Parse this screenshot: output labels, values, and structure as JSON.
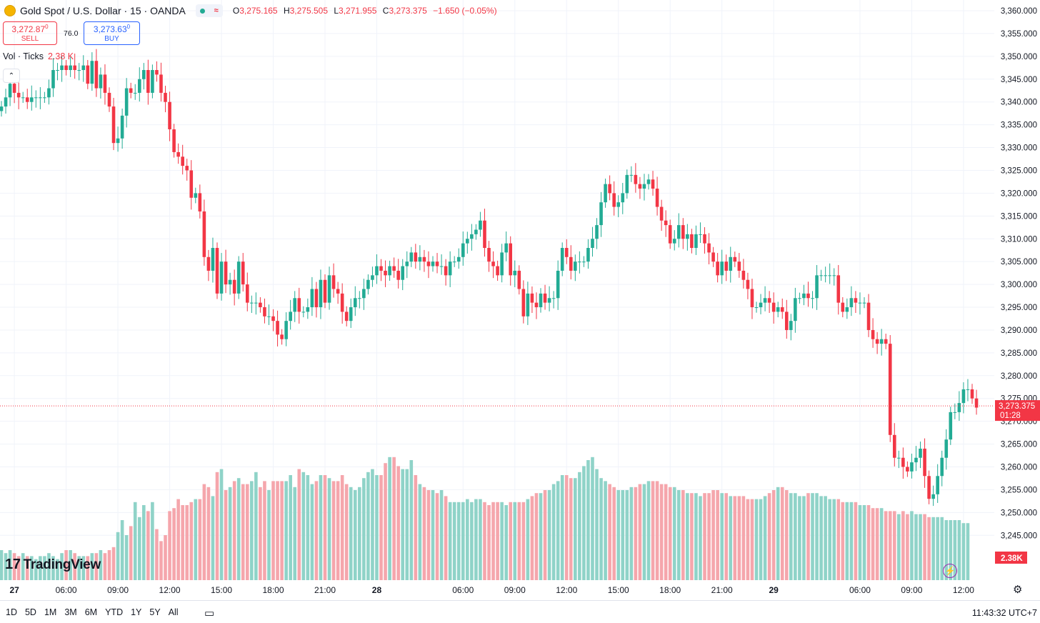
{
  "header": {
    "symbol": "Gold Spot / U.S. Dollar · 15 · OANDA",
    "ohlc": [
      {
        "k": "O",
        "v": "3,275.165"
      },
      {
        "k": "H",
        "v": "3,275.505"
      },
      {
        "k": "L",
        "v": "3,271.955"
      },
      {
        "k": "C",
        "v": "3,273.375"
      },
      {
        "k": "",
        "v": "−1.650 (−0.05%)"
      }
    ]
  },
  "trade": {
    "sell_price": "3,272.87",
    "sell_sup": "0",
    "sell_label": "SELL",
    "buy_price": "3,273.63",
    "buy_sup": "0",
    "buy_label": "BUY",
    "spread": "76.0"
  },
  "volume_legend": {
    "label": "Vol · Ticks",
    "value": "2.38 K"
  },
  "current_price": {
    "label": "3,273.375",
    "countdown": "01:28",
    "value": 3273.375
  },
  "volume_tag": "2.38K",
  "logo": "TradingView",
  "ranges": [
    "1D",
    "5D",
    "1M",
    "3M",
    "6M",
    "YTD",
    "1Y",
    "5Y",
    "All"
  ],
  "clock": "11:43:32 UTC+7",
  "colors": {
    "up": "#22ab94",
    "down": "#f23645",
    "vol_up": "#8fd3c8",
    "vol_down": "#f5a6ac",
    "grid": "#f0f3fa"
  },
  "chart_data": {
    "type": "candlestick",
    "y_axis": {
      "min": 3240,
      "max": 3360,
      "step": 5,
      "labels": [
        "3,360.000",
        "3,355.000",
        "3,350.000",
        "3,345.000",
        "3,340.000",
        "3,335.000",
        "3,330.000",
        "3,325.000",
        "3,320.000",
        "3,315.000",
        "3,310.000",
        "3,305.000",
        "3,300.000",
        "3,295.000",
        "3,290.000",
        "3,285.000",
        "3,280.000",
        "3,275.000",
        "3,270.000",
        "3,265.000",
        "3,260.000",
        "3,255.000",
        "3,250.000",
        "3,245.000"
      ]
    },
    "x_ticks": [
      {
        "label": "27",
        "bold": true,
        "bar": 3
      },
      {
        "label": "06:00",
        "bold": false,
        "bar": 15
      },
      {
        "label": "09:00",
        "bold": false,
        "bar": 27
      },
      {
        "label": "12:00",
        "bold": false,
        "bar": 39
      },
      {
        "label": "15:00",
        "bold": false,
        "bar": 51
      },
      {
        "label": "18:00",
        "bold": false,
        "bar": 63
      },
      {
        "label": "21:00",
        "bold": false,
        "bar": 75
      },
      {
        "label": "28",
        "bold": true,
        "bar": 87
      },
      {
        "label": "06:00",
        "bold": false,
        "bar": 107
      },
      {
        "label": "09:00",
        "bold": false,
        "bar": 119
      },
      {
        "label": "12:00",
        "bold": false,
        "bar": 131
      },
      {
        "label": "15:00",
        "bold": false,
        "bar": 143
      },
      {
        "label": "18:00",
        "bold": false,
        "bar": 155
      },
      {
        "label": "21:00",
        "bold": false,
        "bar": 167
      },
      {
        "label": "29",
        "bold": true,
        "bar": 179
      },
      {
        "label": "06:00",
        "bold": false,
        "bar": 199
      },
      {
        "label": "09:00",
        "bold": false,
        "bar": 211
      },
      {
        "label": "12:00",
        "bold": false,
        "bar": 223
      }
    ],
    "closes": [
      3339,
      3341,
      3344,
      3342,
      3341,
      3341,
      3340,
      3341,
      3341,
      3341,
      3341,
      3343,
      3347,
      3347,
      3348,
      3347,
      3348,
      3347,
      3347,
      3348,
      3344,
      3349,
      3343,
      3346,
      3342,
      3339,
      3331,
      3332,
      3337,
      3343,
      3342,
      3342,
      3345,
      3347,
      3342,
      3347,
      3346,
      3342,
      3340,
      3334,
      3329,
      3328,
      3326,
      3325,
      3319,
      3320,
      3316,
      3306,
      3303,
      3308,
      3298,
      3305,
      3300,
      3301,
      3298,
      3305,
      3300,
      3296,
      3296,
      3296,
      3295,
      3293,
      3293,
      3292,
      3289,
      3288,
      3292,
      3294,
      3297,
      3294,
      3294,
      3295,
      3299,
      3295,
      3301,
      3296,
      3302,
      3299,
      3298,
      3294,
      3292,
      3295,
      3297,
      3297,
      3299,
      3301,
      3302,
      3304,
      3303,
      3302,
      3304,
      3303,
      3301,
      3304,
      3305,
      3307,
      3305,
      3306,
      3305,
      3304,
      3305,
      3304,
      3304,
      3302,
      3305,
      3305,
      3306,
      3309,
      3310,
      3311,
      3312,
      3314,
      3308,
      3305,
      3304,
      3302,
      3307,
      3309,
      3302,
      3303,
      3299,
      3293,
      3298,
      3296,
      3295,
      3298,
      3296,
      3297,
      3297,
      3303,
      3308,
      3306,
      3303,
      3305,
      3305,
      3305,
      3308,
      3310,
      3313,
      3318,
      3322,
      3320,
      3317,
      3318,
      3320,
      3324,
      3324,
      3322,
      3321,
      3322,
      3323,
      3321,
      3317,
      3314,
      3313,
      3309,
      3310,
      3313,
      3310,
      3311,
      3308,
      3311,
      3311,
      3309,
      3307,
      3305,
      3302,
      3305,
      3303,
      3306,
      3305,
      3303,
      3301,
      3299,
      3295,
      3295,
      3296,
      3297,
      3296,
      3294,
      3295,
      3294,
      3290,
      3292,
      3297,
      3297,
      3298,
      3297,
      3297,
      3302,
      3302,
      3302,
      3302,
      3302,
      3296,
      3294,
      3295,
      3297,
      3296,
      3296,
      3296,
      3290,
      3288,
      3287,
      3288,
      3287,
      3267,
      3262,
      3262,
      3260,
      3259,
      3261,
      3262,
      3264,
      3258,
      3253,
      3254,
      3258,
      3262,
      3266,
      3272,
      3272,
      3274,
      3277,
      3277,
      3275,
      3273
    ],
    "volumes": [
      1.0,
      0.9,
      1.0,
      0.9,
      0.8,
      0.9,
      0.8,
      0.8,
      0.7,
      0.8,
      0.8,
      0.9,
      0.8,
      0.7,
      0.9,
      1.0,
      1.0,
      0.9,
      0.8,
      0.8,
      0.8,
      0.9,
      0.9,
      1.0,
      0.9,
      1.0,
      1.1,
      1.6,
      2.0,
      1.5,
      1.8,
      2.6,
      2.1,
      2.5,
      2.3,
      2.6,
      1.7,
      1.3,
      1.5,
      2.3,
      2.4,
      2.7,
      2.5,
      2.5,
      2.6,
      2.7,
      2.7,
      3.2,
      3.1,
      2.8,
      3.6,
      3.7,
      3.0,
      3.1,
      3.3,
      3.4,
      3.2,
      3.2,
      3.3,
      3.6,
      3.1,
      3.3,
      3.0,
      3.3,
      3.3,
      3.3,
      3.3,
      3.5,
      3.1,
      3.7,
      3.6,
      3.5,
      3.2,
      3.3,
      3.5,
      3.5,
      3.4,
      3.3,
      3.3,
      3.5,
      3.2,
      3.1,
      3.0,
      3.1,
      3.4,
      3.6,
      3.7,
      3.5,
      3.5,
      3.9,
      4.1,
      4.1,
      3.8,
      3.7,
      3.7,
      4.0,
      3.5,
      3.2,
      3.1,
      3.0,
      3.0,
      2.9,
      3.0,
      2.8,
      2.6,
      2.6,
      2.6,
      2.6,
      2.7,
      2.6,
      2.7,
      2.7,
      2.6,
      2.5,
      2.6,
      2.6,
      2.6,
      2.5,
      2.6,
      2.6,
      2.6,
      2.6,
      2.7,
      2.8,
      2.9,
      2.9,
      3.0,
      3.0,
      3.2,
      3.3,
      3.5,
      3.5,
      3.4,
      3.4,
      3.6,
      3.8,
      4.0,
      4.1,
      3.7,
      3.4,
      3.3,
      3.2,
      3.1,
      3.0,
      3.0,
      3.0,
      3.1,
      3.1,
      3.2,
      3.2,
      3.3,
      3.3,
      3.3,
      3.2,
      3.2,
      3.1,
      3.1,
      3.0,
      3.0,
      2.9,
      2.9,
      2.9,
      2.8,
      2.9,
      2.9,
      3.0,
      3.0,
      2.9,
      2.9,
      2.8,
      2.8,
      2.8,
      2.8,
      2.7,
      2.7,
      2.7,
      2.7,
      2.8,
      2.9,
      3.0,
      3.1,
      3.1,
      3.0,
      2.9,
      2.9,
      2.8,
      2.8,
      2.9,
      2.9,
      2.9,
      2.8,
      2.8,
      2.7,
      2.7,
      2.7,
      2.6,
      2.6,
      2.6,
      2.6,
      2.5,
      2.5,
      2.5,
      2.4,
      2.4,
      2.4,
      2.3,
      2.3,
      2.3,
      2.2,
      2.3,
      2.2,
      2.3,
      2.2,
      2.2,
      2.2,
      2.1,
      2.1,
      2.1,
      2.1,
      2.0,
      2.0,
      2.0,
      2.0,
      1.9,
      1.9
    ]
  }
}
